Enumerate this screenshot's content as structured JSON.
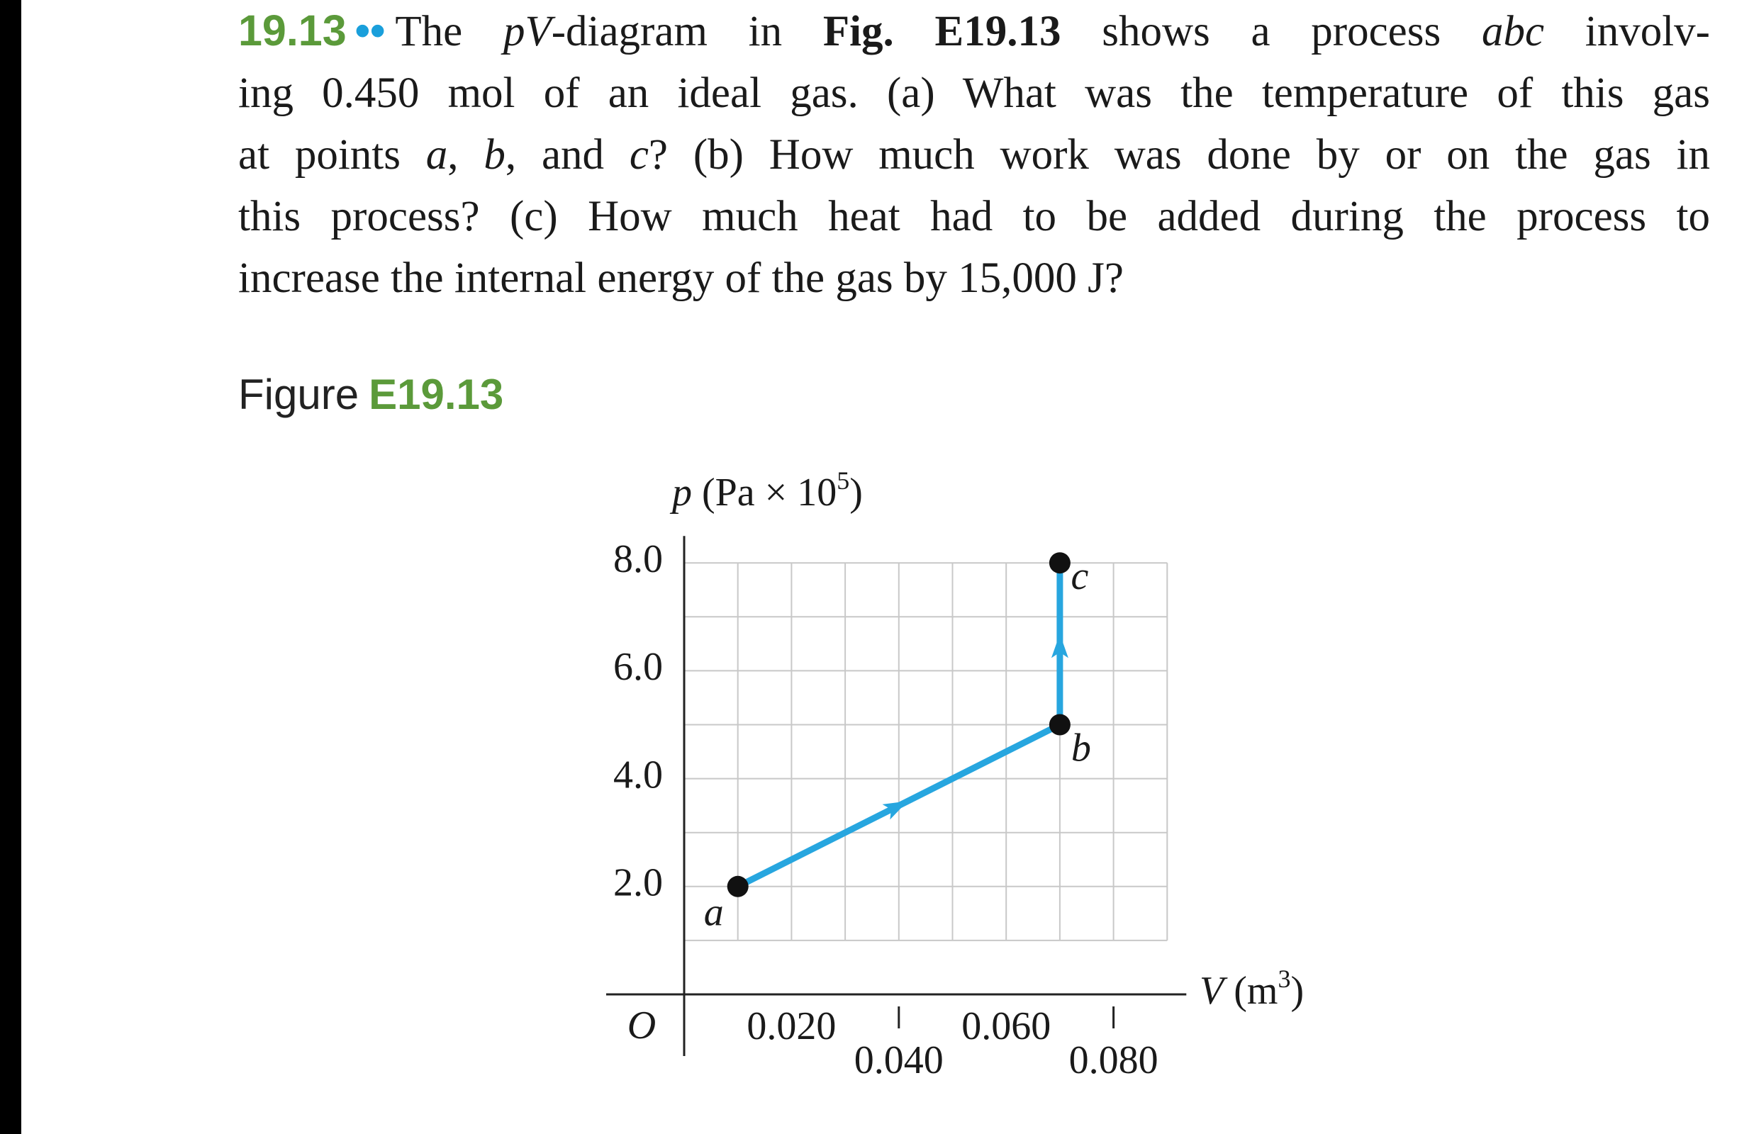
{
  "problem": {
    "number": "19.13",
    "difficulty": "••",
    "lines": [
      [
        "The ",
        "pV",
        "-diagram in ",
        "Fig. E19.13",
        " shows a process ",
        "abc",
        " involv-"
      ],
      [
        "ing 0.450 mol of an ideal gas. (a) What was the temperature of this gas"
      ],
      [
        "at points ",
        "a",
        ", ",
        "b",
        ", and ",
        "c",
        "? (b) How much work was done by or on the gas in"
      ],
      [
        "this process? (c) How much heat had to be added during the process to"
      ],
      [
        "increase the internal energy of the gas by 15,000 J?"
      ]
    ]
  },
  "figure": {
    "label_prefix": "Figure",
    "label_id": "E19.13"
  },
  "chart_data": {
    "type": "line",
    "ylabel": {
      "var": "p",
      "unit": " (Pa × 10",
      "exp": "5",
      "close": ")"
    },
    "xlabel": {
      "var": "V",
      "unit": " (m",
      "exp": "3",
      "close": ")"
    },
    "origin_label": "O",
    "xlim": [
      0,
      0.09
    ],
    "ylim": [
      0,
      8
    ],
    "xticks": [
      {
        "value": 0.02,
        "label": "0.020"
      },
      {
        "value": 0.04,
        "label": "0.040"
      },
      {
        "value": 0.06,
        "label": "0.060"
      },
      {
        "value": 0.08,
        "label": "0.080"
      }
    ],
    "yticks": [
      {
        "value": 2,
        "label": "2.0"
      },
      {
        "value": 4,
        "label": "4.0"
      },
      {
        "value": 6,
        "label": "6.0"
      },
      {
        "value": 8,
        "label": "8.0"
      }
    ],
    "xgrid": [
      0.01,
      0.02,
      0.03,
      0.04,
      0.05,
      0.06,
      0.07,
      0.08,
      0.09
    ],
    "ygrid": [
      1,
      2,
      3,
      4,
      5,
      6,
      7,
      8
    ],
    "grid": true,
    "series": [
      {
        "color": "#27a6df",
        "x": [
          0.01,
          0.07,
          0.07
        ],
        "y": [
          2,
          5,
          8
        ],
        "point_labels": [
          "a",
          "b",
          "c"
        ]
      }
    ]
  }
}
